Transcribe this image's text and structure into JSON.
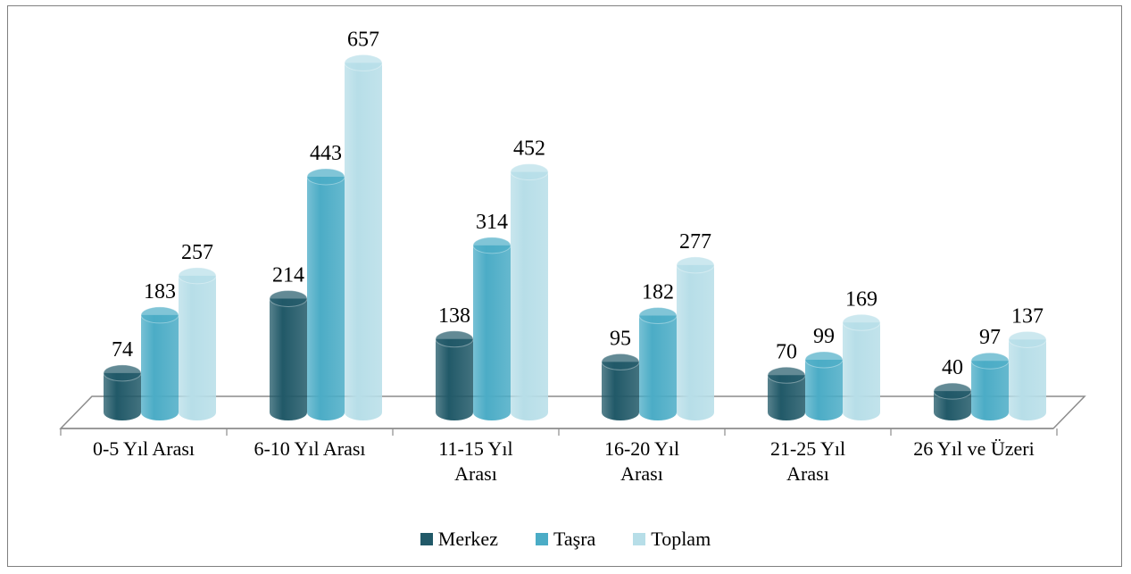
{
  "chart_data": {
    "type": "bar",
    "categories": [
      [
        "0-5 Yıl Arası"
      ],
      [
        "6-10 Yıl Arası"
      ],
      [
        "11-15 Yıl",
        "Arası"
      ],
      [
        "16-20 Yıl",
        "Arası"
      ],
      [
        "21-25 Yıl",
        "Arası"
      ],
      [
        "26 Yıl ve Üzeri"
      ]
    ],
    "series": [
      {
        "name": "Merkez",
        "values": [
          74,
          214,
          138,
          95,
          70,
          40
        ],
        "color": "#215968"
      },
      {
        "name": "Taşra",
        "values": [
          183,
          443,
          314,
          182,
          99,
          97
        ],
        "color": "#4bacc6"
      },
      {
        "name": "Toplam",
        "values": [
          257,
          657,
          452,
          277,
          169,
          137
        ],
        "color": "#b7dee8"
      }
    ],
    "ylim": [
      0,
      700
    ],
    "grid": false,
    "legend_position": "bottom",
    "style": "3d-cylinder"
  }
}
